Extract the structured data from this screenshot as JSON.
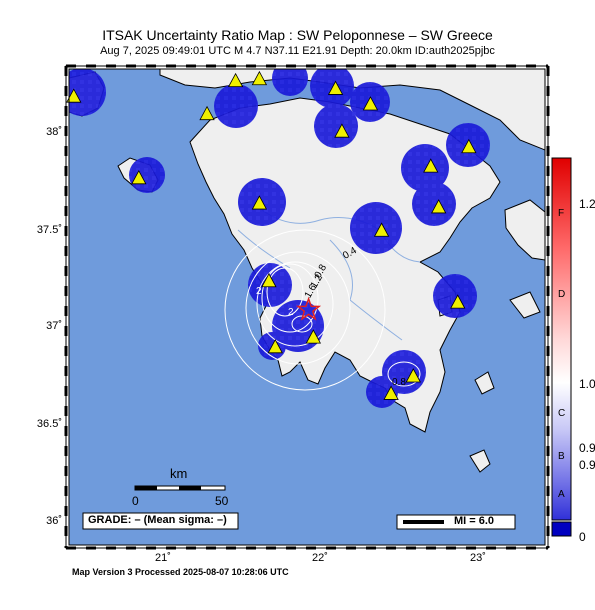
{
  "title": "ITSAK Uncertainty Ratio Map : SW Peloponnese – SW Greece",
  "subtitle": "Aug  7, 2025 09:49:01 UTC   M 4.7   N37.11 E21.91   Depth: 20.0km   ID:auth2025pjbc",
  "footer": "Map Version 3 Processed 2025-08-07 10:28:06 UTC",
  "axes": {
    "lat_ticks": [
      "38˚",
      "37.5˚",
      "37˚",
      "36.5˚",
      "36˚"
    ],
    "lon_ticks": [
      "21˚",
      "22˚",
      "23˚"
    ]
  },
  "scale_bar": {
    "unit": "km",
    "start": "0",
    "end": "50"
  },
  "grade_box": "GRADE: – (Mean sigma: –)",
  "mi_legend": "MI = 6.0",
  "contour_labels": [
    "0.4",
    "0.8",
    "1.2",
    "1.6",
    "2",
    "2",
    "0.8"
  ],
  "colorbar": {
    "letters": [
      "F",
      "D",
      "C",
      "B",
      "A"
    ],
    "values": [
      "1.2",
      "1.0",
      "0.9",
      "0.9",
      "0"
    ]
  },
  "colors": {
    "sea": "#6f9bdc",
    "land": "#efefef",
    "blue_patch": "#1a1ad8",
    "epicenter": "#e02020",
    "station": "#f0f000"
  },
  "epicenter": {
    "lat": 37.11,
    "lon": 21.91
  },
  "stations": [
    {
      "lon": 20.43,
      "lat": 38.21
    },
    {
      "lon": 21.27,
      "lat": 38.12
    },
    {
      "lon": 21.45,
      "lat": 38.29
    },
    {
      "lon": 21.6,
      "lat": 38.3
    },
    {
      "lon": 22.08,
      "lat": 38.25
    },
    {
      "lon": 22.3,
      "lat": 38.17
    },
    {
      "lon": 22.12,
      "lat": 38.03
    },
    {
      "lon": 22.92,
      "lat": 37.95
    },
    {
      "lon": 22.68,
      "lat": 37.85
    },
    {
      "lon": 20.84,
      "lat": 37.79
    },
    {
      "lon": 22.73,
      "lat": 37.64
    },
    {
      "lon": 21.6,
      "lat": 37.66
    },
    {
      "lon": 22.37,
      "lat": 37.52
    },
    {
      "lon": 21.66,
      "lat": 37.26
    },
    {
      "lon": 22.85,
      "lat": 37.15
    },
    {
      "lon": 21.94,
      "lat": 36.97
    },
    {
      "lon": 21.7,
      "lat": 36.92
    },
    {
      "lon": 22.57,
      "lat": 36.77
    },
    {
      "lon": 22.43,
      "lat": 36.68
    }
  ]
}
